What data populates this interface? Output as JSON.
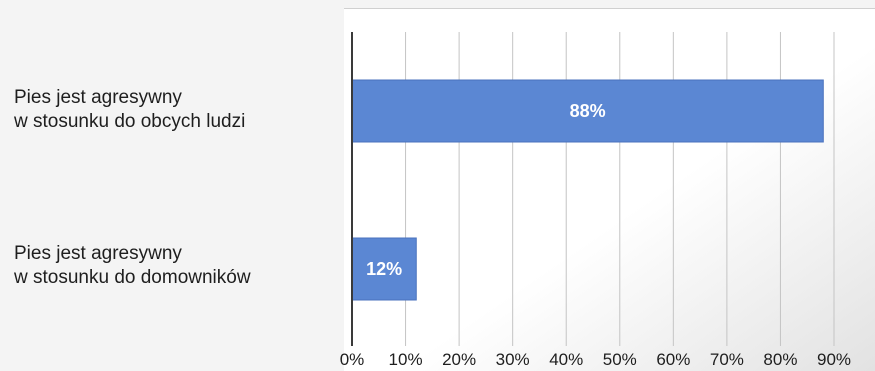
{
  "chart_data": {
    "type": "bar",
    "orientation": "horizontal",
    "categories": [
      [
        "Pies jest agresywny",
        "w stosunku do obcych ludzi"
      ],
      [
        "Pies jest agresywny",
        "w stosunku do domowników"
      ]
    ],
    "values": [
      88,
      12
    ],
    "value_labels": [
      "88%",
      "12%"
    ],
    "xlim": [
      0,
      90
    ],
    "x_ticks": [
      "0%",
      "10%",
      "20%",
      "30%",
      "40%",
      "50%",
      "60%",
      "70%",
      "80%",
      "90%"
    ],
    "title": "",
    "xlabel": "",
    "ylabel": "",
    "grid": true,
    "legend": false,
    "colors": {
      "bar": "#5b87d3",
      "bar_edge": "#4a72bd",
      "gridline": "#c4c4c4",
      "axis": "#3a3a3a",
      "label": "#1e1e1e",
      "value_label": "#ffffff"
    }
  }
}
